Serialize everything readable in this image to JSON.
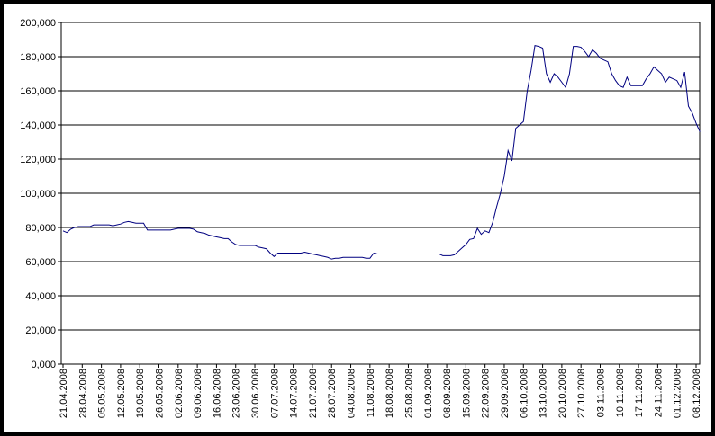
{
  "chart_data": {
    "type": "line",
    "categories": [
      "21.04.2008",
      null,
      null,
      null,
      null,
      "28.04.2008",
      null,
      null,
      null,
      null,
      "05.05.2008",
      null,
      null,
      null,
      null,
      "12.05.2008",
      null,
      null,
      null,
      null,
      "19.05.2008",
      null,
      null,
      null,
      null,
      "26.05.2008",
      null,
      null,
      null,
      null,
      "02.06.2008",
      null,
      null,
      null,
      null,
      "09.06.2008",
      null,
      null,
      null,
      null,
      "16.06.2008",
      null,
      null,
      null,
      null,
      "23.06.2008",
      null,
      null,
      null,
      null,
      "30.06.2008",
      null,
      null,
      null,
      null,
      "07.07.2008",
      null,
      null,
      null,
      null,
      "14.07.2008",
      null,
      null,
      null,
      null,
      "21.07.2008",
      null,
      null,
      null,
      null,
      "28.07.2008",
      null,
      null,
      null,
      null,
      "04.08.2008",
      null,
      null,
      null,
      null,
      "11.08.2008",
      null,
      null,
      null,
      null,
      "18.08.2008",
      null,
      null,
      null,
      null,
      "25.08.2008",
      null,
      null,
      null,
      null,
      "01.09.2008",
      null,
      null,
      null,
      null,
      "08.09.2008",
      null,
      null,
      null,
      null,
      "15.09.2008",
      null,
      null,
      null,
      null,
      "22.09.2008",
      null,
      null,
      null,
      null,
      "29.09.2008",
      null,
      null,
      null,
      null,
      "06.10.2008",
      null,
      null,
      null,
      null,
      "13.10.2008",
      null,
      null,
      null,
      null,
      "20.10.2008",
      null,
      null,
      null,
      null,
      "27.10.2008",
      null,
      null,
      null,
      null,
      "03.11.2008",
      null,
      null,
      null,
      null,
      "10.11.2008",
      null,
      null,
      null,
      null,
      "17.11.2008",
      null,
      null,
      null,
      null,
      "24.11.2008",
      null,
      null,
      null,
      null,
      "01.12.2008",
      null,
      null,
      null,
      null,
      "08.12.2008",
      null
    ],
    "series": [
      {
        "color": "#000080",
        "values": [
          78000,
          77000,
          79000,
          80000,
          80500,
          80500,
          80500,
          80500,
          81500,
          81500,
          81500,
          81500,
          81500,
          81000,
          81500,
          82000,
          83000,
          83500,
          83000,
          82500,
          82500,
          82500,
          78500,
          78500,
          78500,
          78500,
          78500,
          78500,
          78500,
          79000,
          79500,
          79500,
          79500,
          79500,
          79000,
          77500,
          77000,
          76500,
          75500,
          75000,
          74500,
          74000,
          73500,
          73500,
          71500,
          70000,
          69500,
          69500,
          69500,
          69500,
          69500,
          68500,
          68000,
          67500,
          65000,
          63000,
          65000,
          65000,
          65000,
          65000,
          65000,
          65000,
          65000,
          65500,
          65000,
          64500,
          64000,
          63500,
          63000,
          62500,
          61500,
          62000,
          62000,
          62500,
          62500,
          62500,
          62500,
          62500,
          62500,
          62000,
          62000,
          65000,
          64500,
          64500,
          64500,
          64500,
          64500,
          64500,
          64500,
          64500,
          64500,
          64500,
          64500,
          64500,
          64500,
          64500,
          64500,
          64500,
          64500,
          63500,
          63500,
          63500,
          64000,
          66000,
          68000,
          70000,
          73000,
          73500,
          79500,
          76000,
          78000,
          77000,
          83000,
          92000,
          100000,
          110000,
          125000,
          119000,
          138000,
          140000,
          142000,
          160000,
          172000,
          186500,
          186000,
          185000,
          170000,
          165000,
          170000,
          168000,
          165000,
          162000,
          170000,
          186000,
          186000,
          185500,
          183000,
          180000,
          184000,
          182000,
          179000,
          178000,
          177000,
          170000,
          166000,
          163000,
          162000,
          168000,
          163000,
          163000,
          163000,
          163000,
          167000,
          170000,
          174000,
          172000,
          170000,
          165000,
          168000,
          167000,
          166000,
          162000,
          171000,
          151000,
          147000,
          141000,
          136000
        ]
      }
    ],
    "ylim": [
      0,
      200000
    ],
    "yticks": [
      {
        "value": 0,
        "label": "0,000"
      },
      {
        "value": 20000,
        "label": "20,000"
      },
      {
        "value": 40000,
        "label": "40,000"
      },
      {
        "value": 60000,
        "label": "60,000"
      },
      {
        "value": 80000,
        "label": "80,000"
      },
      {
        "value": 100000,
        "label": "100,000"
      },
      {
        "value": 120000,
        "label": "120,000"
      },
      {
        "value": 140000,
        "label": "140,000"
      },
      {
        "value": 160000,
        "label": "160,000"
      },
      {
        "value": 180000,
        "label": "180,000"
      },
      {
        "value": 200000,
        "label": "200,000"
      }
    ],
    "grid": true
  }
}
